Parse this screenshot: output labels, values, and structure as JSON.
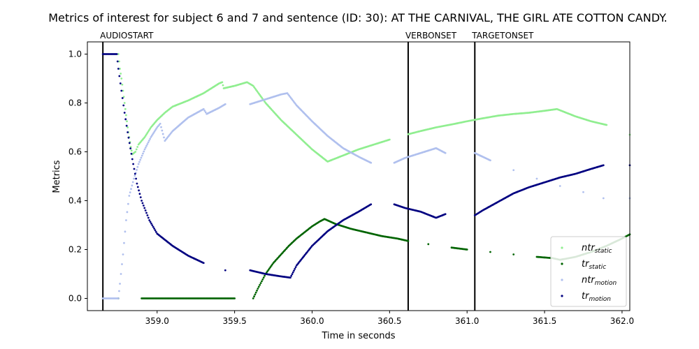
{
  "chart_data": {
    "type": "scatter",
    "title": "Metrics of interest for subject 6 and 7 and sentence (ID: 30): AT THE CARNIVAL, THE GIRL ATE COTTON CANDY.",
    "xlabel": "Time in seconds",
    "ylabel": "Metrics",
    "xlim": [
      358.55,
      362.05
    ],
    "ylim": [
      -0.05,
      1.05
    ],
    "xticks": [
      359.0,
      359.5,
      360.0,
      360.5,
      361.0,
      361.5,
      362.0
    ],
    "xtick_labels": [
      "359.0",
      "359.5",
      "360.0",
      "360.5",
      "361.0",
      "361.5",
      "362.0"
    ],
    "yticks": [
      0.0,
      0.2,
      0.4,
      0.6,
      0.8,
      1.0
    ],
    "ytick_labels": [
      "0.0",
      "0.2",
      "0.4",
      "0.6",
      "0.8",
      "1.0"
    ],
    "grid": false,
    "legend_position": "lower-right",
    "events": [
      {
        "label": "AUDIOSTART",
        "x": 358.65
      },
      {
        "label": "VERBONSET",
        "x": 360.62
      },
      {
        "label": "TARGETONSET",
        "x": 361.05
      }
    ],
    "series": [
      {
        "name": "ntr_static",
        "legend_base": "ntr",
        "legend_sub": "static",
        "color": "#90ee90",
        "points": [
          [
            358.75,
            1.0
          ],
          [
            358.76,
            0.94
          ],
          [
            358.77,
            0.9
          ],
          [
            358.78,
            0.85
          ],
          [
            358.79,
            0.8
          ],
          [
            358.8,
            0.75
          ],
          [
            358.81,
            0.7
          ],
          [
            358.82,
            0.66
          ],
          [
            358.83,
            0.62
          ],
          [
            358.84,
            0.59
          ],
          [
            358.86,
            0.6
          ],
          [
            358.88,
            0.63
          ],
          [
            358.92,
            0.66
          ],
          [
            358.96,
            0.7
          ],
          [
            359.0,
            0.73
          ],
          [
            359.05,
            0.76
          ],
          [
            359.1,
            0.785
          ],
          [
            359.2,
            0.81
          ],
          [
            359.3,
            0.84
          ],
          [
            359.4,
            0.88
          ],
          [
            359.42,
            0.885
          ],
          [
            359.43,
            0.86
          ],
          [
            359.5,
            0.87
          ],
          [
            359.58,
            0.885
          ],
          [
            359.62,
            0.87
          ],
          [
            359.7,
            0.8
          ],
          [
            359.8,
            0.73
          ],
          [
            359.9,
            0.67
          ],
          [
            360.0,
            0.61
          ],
          [
            360.1,
            0.56
          ],
          [
            360.2,
            0.585
          ],
          [
            360.3,
            0.61
          ],
          [
            360.4,
            0.63
          ],
          [
            360.5,
            0.65
          ],
          [
            360.62,
            0.672
          ],
          [
            360.7,
            0.685
          ],
          [
            360.8,
            0.7
          ],
          [
            360.9,
            0.712
          ],
          [
            361.0,
            0.725
          ],
          [
            361.1,
            0.737
          ],
          [
            361.2,
            0.748
          ],
          [
            361.3,
            0.755
          ],
          [
            361.4,
            0.76
          ],
          [
            361.5,
            0.768
          ],
          [
            361.58,
            0.775
          ],
          [
            361.6,
            0.77
          ],
          [
            361.7,
            0.745
          ],
          [
            361.8,
            0.725
          ],
          [
            361.9,
            0.71
          ],
          [
            362.05,
            0.67
          ]
        ]
      },
      {
        "name": "tr_static",
        "legend_base": "tr",
        "legend_sub": "static",
        "color": "#006400",
        "points": [
          [
            358.75,
            0.0
          ],
          [
            358.9,
            0.0
          ],
          [
            359.0,
            0.0
          ],
          [
            359.1,
            0.0
          ],
          [
            359.2,
            0.0
          ],
          [
            359.3,
            0.0
          ],
          [
            359.4,
            0.0
          ],
          [
            359.5,
            0.0
          ],
          [
            359.62,
            0.0
          ],
          [
            359.65,
            0.04
          ],
          [
            359.7,
            0.1
          ],
          [
            359.75,
            0.145
          ],
          [
            359.8,
            0.18
          ],
          [
            359.85,
            0.215
          ],
          [
            359.9,
            0.245
          ],
          [
            359.95,
            0.27
          ],
          [
            360.0,
            0.295
          ],
          [
            360.05,
            0.315
          ],
          [
            360.08,
            0.325
          ],
          [
            360.15,
            0.305
          ],
          [
            360.25,
            0.285
          ],
          [
            360.35,
            0.27
          ],
          [
            360.45,
            0.255
          ],
          [
            360.55,
            0.245
          ],
          [
            360.62,
            0.235
          ],
          [
            360.75,
            0.222
          ],
          [
            360.9,
            0.208
          ],
          [
            361.0,
            0.2
          ],
          [
            361.15,
            0.19
          ],
          [
            361.3,
            0.18
          ],
          [
            361.45,
            0.17
          ],
          [
            361.55,
            0.165
          ],
          [
            361.6,
            0.158
          ],
          [
            361.7,
            0.17
          ],
          [
            361.8,
            0.19
          ],
          [
            361.9,
            0.215
          ],
          [
            362.0,
            0.245
          ],
          [
            362.05,
            0.262
          ]
        ]
      },
      {
        "name": "ntr_motion",
        "legend_base": "ntr",
        "legend_sub": "motion",
        "color": "#b0c0ee",
        "points": [
          [
            358.65,
            0.0
          ],
          [
            358.7,
            0.0
          ],
          [
            358.75,
            0.0
          ],
          [
            358.76,
            0.06
          ],
          [
            358.78,
            0.18
          ],
          [
            358.8,
            0.32
          ],
          [
            358.82,
            0.42
          ],
          [
            358.85,
            0.49
          ],
          [
            358.88,
            0.55
          ],
          [
            358.92,
            0.61
          ],
          [
            358.96,
            0.66
          ],
          [
            359.0,
            0.7
          ],
          [
            359.02,
            0.715
          ],
          [
            359.05,
            0.645
          ],
          [
            359.1,
            0.685
          ],
          [
            359.2,
            0.74
          ],
          [
            359.3,
            0.775
          ],
          [
            359.32,
            0.755
          ],
          [
            359.4,
            0.78
          ],
          [
            359.44,
            0.795
          ],
          [
            359.6,
            0.795
          ],
          [
            359.7,
            0.815
          ],
          [
            359.8,
            0.835
          ],
          [
            359.84,
            0.84
          ],
          [
            359.9,
            0.79
          ],
          [
            360.0,
            0.725
          ],
          [
            360.1,
            0.665
          ],
          [
            360.2,
            0.615
          ],
          [
            360.3,
            0.58
          ],
          [
            360.38,
            0.555
          ],
          [
            360.53,
            0.555
          ],
          [
            360.6,
            0.575
          ],
          [
            360.7,
            0.595
          ],
          [
            360.8,
            0.615
          ],
          [
            360.86,
            0.595
          ],
          [
            361.05,
            0.595
          ],
          [
            361.15,
            0.565
          ],
          [
            361.3,
            0.525
          ],
          [
            361.45,
            0.49
          ],
          [
            361.6,
            0.46
          ],
          [
            361.75,
            0.435
          ],
          [
            361.88,
            0.41
          ],
          [
            362.05,
            0.41
          ]
        ]
      },
      {
        "name": "tr_motion",
        "legend_base": "tr",
        "legend_sub": "motion",
        "color": "#000080",
        "points": [
          [
            358.65,
            1.0
          ],
          [
            358.7,
            1.0
          ],
          [
            358.74,
            1.0
          ],
          [
            358.75,
            0.94
          ],
          [
            358.77,
            0.85
          ],
          [
            358.79,
            0.76
          ],
          [
            358.81,
            0.68
          ],
          [
            358.84,
            0.57
          ],
          [
            358.87,
            0.47
          ],
          [
            358.9,
            0.4
          ],
          [
            358.95,
            0.32
          ],
          [
            359.0,
            0.265
          ],
          [
            359.1,
            0.215
          ],
          [
            359.2,
            0.175
          ],
          [
            359.3,
            0.145
          ],
          [
            359.44,
            0.115
          ],
          [
            359.6,
            0.115
          ],
          [
            359.7,
            0.1
          ],
          [
            359.8,
            0.09
          ],
          [
            359.86,
            0.085
          ],
          [
            359.9,
            0.135
          ],
          [
            360.0,
            0.215
          ],
          [
            360.1,
            0.275
          ],
          [
            360.2,
            0.32
          ],
          [
            360.3,
            0.355
          ],
          [
            360.38,
            0.385
          ],
          [
            360.53,
            0.385
          ],
          [
            360.6,
            0.37
          ],
          [
            360.7,
            0.355
          ],
          [
            360.8,
            0.33
          ],
          [
            360.86,
            0.345
          ],
          [
            361.05,
            0.34
          ],
          [
            361.1,
            0.36
          ],
          [
            361.2,
            0.395
          ],
          [
            361.3,
            0.43
          ],
          [
            361.4,
            0.455
          ],
          [
            361.5,
            0.475
          ],
          [
            361.6,
            0.495
          ],
          [
            361.7,
            0.51
          ],
          [
            361.8,
            0.53
          ],
          [
            361.88,
            0.545
          ],
          [
            362.05,
            0.545
          ]
        ]
      }
    ]
  }
}
